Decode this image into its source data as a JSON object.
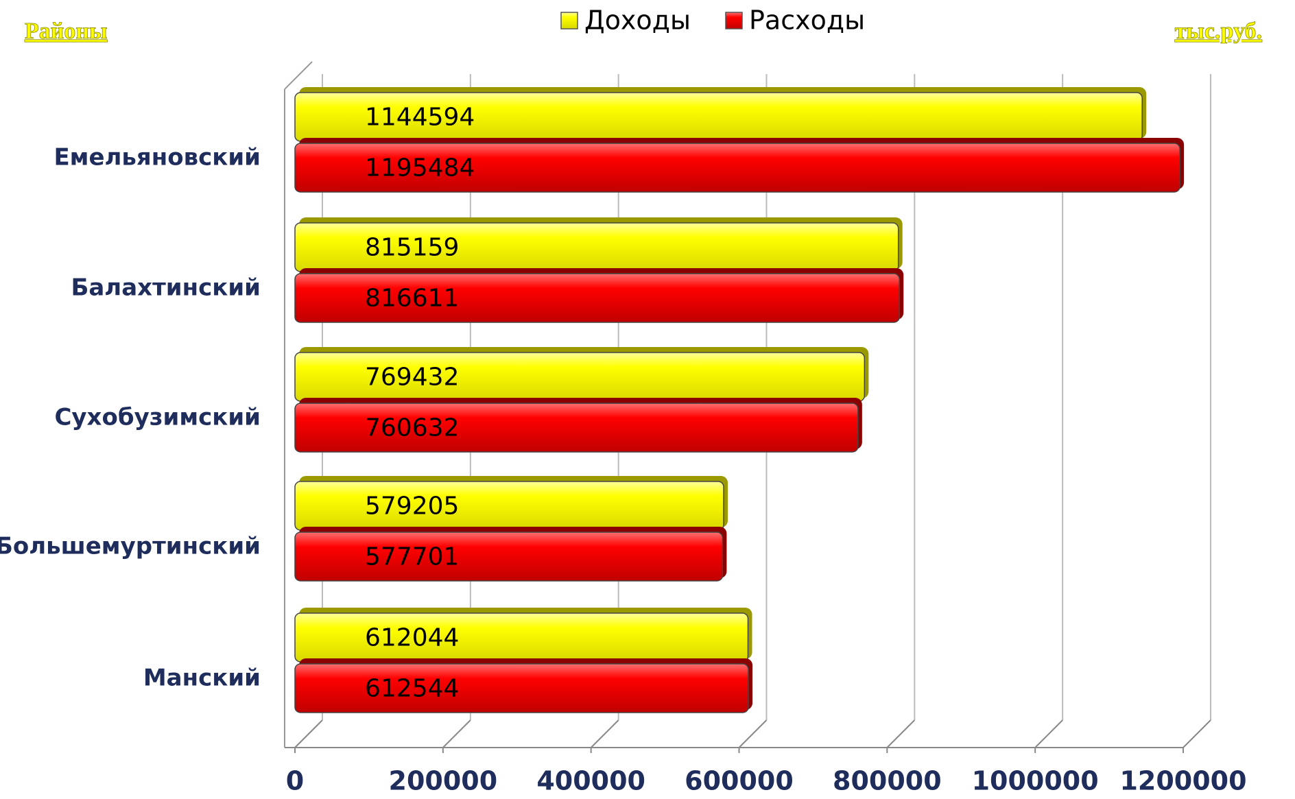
{
  "chart_data": {
    "type": "bar",
    "orientation": "horizontal",
    "annotations": [
      "Районы",
      "тыс.руб."
    ],
    "categories": [
      "Емельяновский",
      "Балахтинский",
      "Сухобузимский",
      "Большемуртинский",
      "Манский"
    ],
    "series": [
      {
        "name": "Доходы",
        "color": "#ffff00",
        "values": [
          1144594,
          815159,
          769432,
          579205,
          612044
        ]
      },
      {
        "name": "Расходы",
        "color": "#ff0000",
        "values": [
          1195484,
          816611,
          760632,
          577701,
          612544
        ]
      }
    ],
    "xlim": [
      0,
      1200000
    ],
    "xticks": [
      0,
      200000,
      400000,
      600000,
      800000,
      1000000,
      1200000
    ],
    "grid": true,
    "legend": "top"
  }
}
